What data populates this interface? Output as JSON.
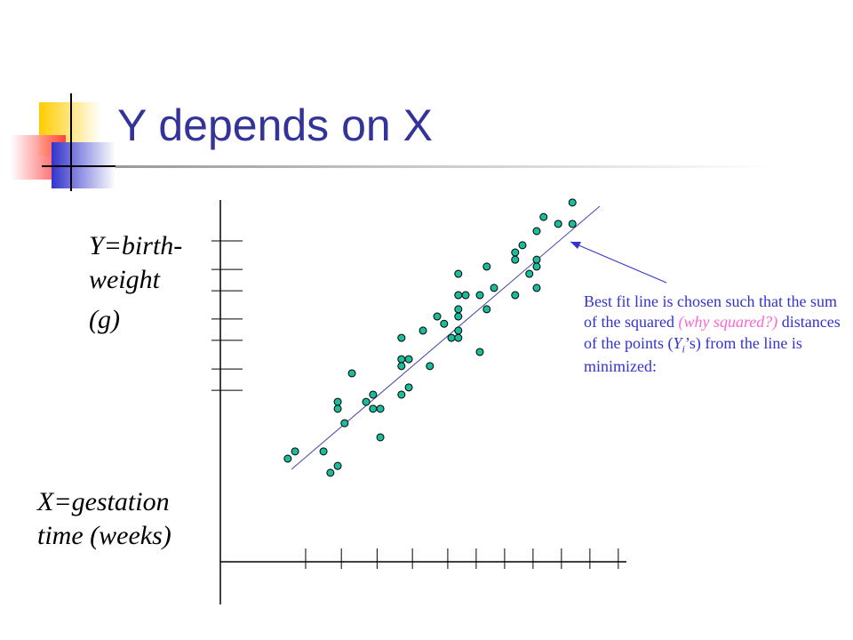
{
  "chart_data": {
    "type": "scatter",
    "title": "Y depends on X",
    "y_label_lines": [
      "Y=birth-",
      "weight",
      "(g)"
    ],
    "x_label_lines": [
      "X=gestation",
      "time (weeks)"
    ],
    "annotation": {
      "text_1": "Best fit line is chosen such that the sum of the squared ",
      "emphasis": "(why squared?)",
      "text_2": " distances of the points (",
      "symbol": "Y",
      "subscript": "i",
      "text_3": "’s) from the line is minimized:"
    },
    "color": "#1abc9c",
    "xlim": [
      0,
      100
    ],
    "ylim": [
      0,
      100
    ],
    "xticks": [
      21.0,
      29.8,
      38.6,
      47.3,
      56.0,
      63.0,
      70.0,
      77.0,
      84.0,
      91.0,
      98.0
    ],
    "yticks": [
      47.4,
      53.3,
      61.2,
      67.1,
      74.9,
      80.8,
      88.7
    ],
    "x": [
      16.6,
      18.4,
      25.4,
      27.1,
      28.9,
      28.9,
      28.9,
      30.6,
      32.4,
      35.9,
      37.6,
      37.6,
      39.4,
      39.4,
      44.6,
      44.6,
      44.6,
      46.4,
      44.6,
      46.4,
      49.9,
      51.6,
      53.4,
      55.1,
      56.9,
      58.6,
      58.6,
      58.6,
      58.6,
      58.6,
      58.6,
      60.4,
      63.9,
      63.9,
      65.6,
      65.6,
      67.4,
      72.6,
      72.6,
      72.6,
      74.4,
      76.1,
      77.9,
      77.9,
      77.9,
      77.9,
      79.6,
      83.2,
      86.7,
      86.7
    ],
    "values": [
      28.5,
      30.5,
      30.5,
      24.6,
      26.5,
      44.2,
      42.3,
      38.3,
      52.1,
      44.2,
      46.2,
      42.3,
      42.3,
      34.4,
      61.9,
      56.0,
      54.1,
      56.0,
      46.2,
      48.2,
      63.9,
      54.1,
      67.8,
      65.8,
      61.9,
      61.9,
      63.9,
      67.8,
      69.8,
      73.7,
      79.6,
      73.7,
      73.7,
      58.0,
      69.8,
      81.6,
      75.7,
      85.5,
      83.5,
      73.7,
      87.5,
      79.6,
      91.4,
      83.5,
      81.6,
      75.7,
      95.3,
      93.4,
      99.3,
      93.4
    ]
  }
}
